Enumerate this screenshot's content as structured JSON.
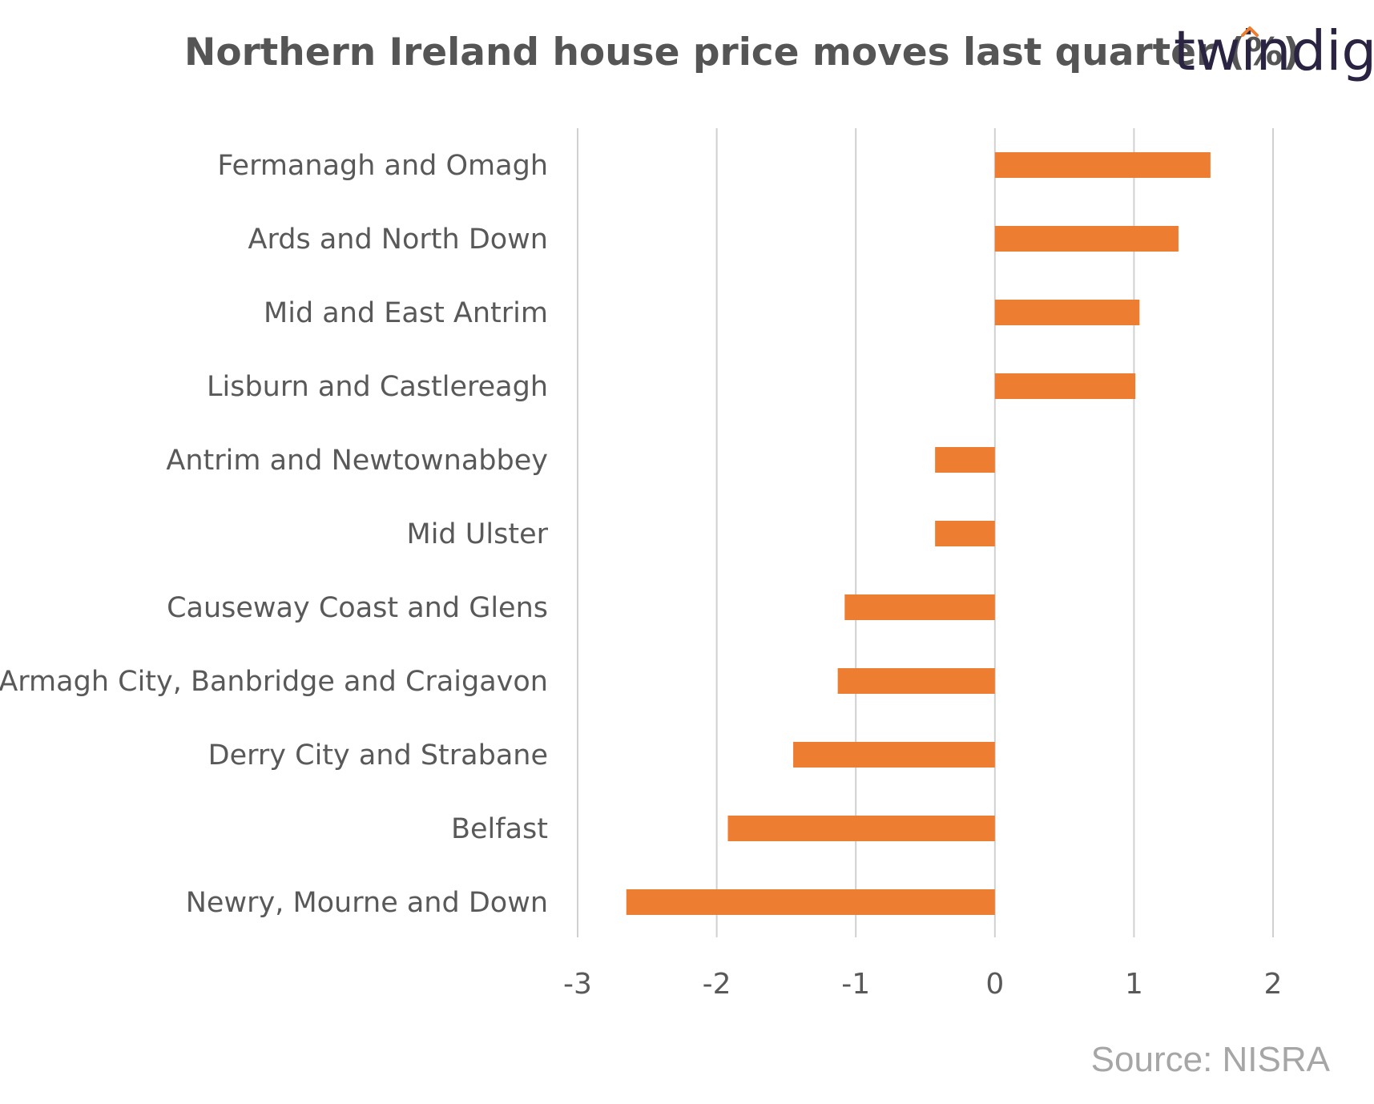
{
  "title": "Northern Ireland house price moves last quarter (%)",
  "logo": "twindig",
  "source": "Source: NISRA",
  "colors": {
    "bar": "#ed7d31",
    "grid": "#d0d0d0",
    "label": "#595959",
    "logo_accent": "#ed7d31"
  },
  "chart_data": {
    "type": "bar",
    "orientation": "horizontal",
    "title": "Northern Ireland house price moves last quarter (%)",
    "xlabel": "",
    "ylabel": "",
    "xlim": [
      -3,
      2
    ],
    "xticks": [
      -3,
      -2,
      -1,
      0,
      1,
      2
    ],
    "grid": true,
    "categories": [
      "Fermanagh and Omagh",
      "Ards and North Down",
      "Mid and East Antrim",
      "Lisburn and Castlereagh",
      "Antrim and Newtownabbey",
      "Mid Ulster",
      "Causeway Coast and Glens",
      "Armagh City, Banbridge and Craigavon",
      "Derry City and Strabane",
      "Belfast",
      "Newry, Mourne and Down"
    ],
    "values": [
      1.55,
      1.32,
      1.04,
      1.01,
      -0.43,
      -0.43,
      -1.08,
      -1.13,
      -1.45,
      -1.92,
      -2.65
    ]
  }
}
